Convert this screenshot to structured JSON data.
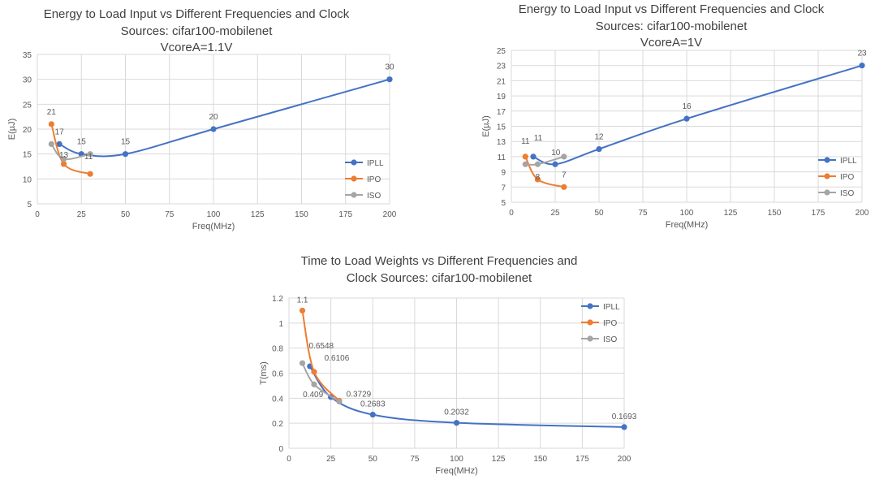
{
  "chart_data": [
    {
      "type": "line",
      "title": [
        "Energy to Load Input vs Different Frequencies and Clock",
        "Sources: cifar100-mobilenet",
        "VcoreA=1.1V"
      ],
      "xlabel": "Freq(MHz)",
      "ylabel": "E(µJ)",
      "xlim": [
        0,
        200
      ],
      "ylim": [
        5,
        35
      ],
      "xticks": [
        0,
        25,
        50,
        75,
        100,
        125,
        150,
        175,
        200
      ],
      "yticks": [
        5,
        10,
        15,
        20,
        25,
        30,
        35
      ],
      "grid": true,
      "legend": "right",
      "smooth": true,
      "series": [
        {
          "name": "IPLL",
          "color": "#4472C4",
          "x": [
            12.5,
            25,
            50,
            100,
            200
          ],
          "y": [
            17,
            15,
            15,
            20,
            30
          ]
        },
        {
          "name": "IPO",
          "color": "#ED7D31",
          "x": [
            8,
            15,
            30
          ],
          "y": [
            21,
            13,
            11
          ]
        },
        {
          "name": "ISO",
          "color": "#A5A5A5",
          "x": [
            8,
            15,
            30
          ],
          "y": [
            17,
            14,
            15
          ]
        }
      ],
      "data_labels": [
        {
          "series": 1,
          "index": 0,
          "text": "21"
        },
        {
          "series": 0,
          "index": 0,
          "text": "17"
        },
        {
          "series": 0,
          "index": 1,
          "text": "15"
        },
        {
          "series": 0,
          "index": 2,
          "text": "15"
        },
        {
          "series": 1,
          "index": 1,
          "text": "13"
        },
        {
          "series": 1,
          "index": 2,
          "text": "11"
        },
        {
          "series": 0,
          "index": 3,
          "text": "20"
        },
        {
          "series": 0,
          "index": 4,
          "text": "30"
        }
      ]
    },
    {
      "type": "line",
      "title": [
        "Energy to Load Input vs Different Frequencies and Clock",
        "Sources: cifar100-mobilenet",
        "VcoreA=1V"
      ],
      "xlabel": "Freq(MHz)",
      "ylabel": "E(µJ)",
      "xlim": [
        0,
        200
      ],
      "ylim": [
        5,
        25
      ],
      "xticks": [
        0,
        25,
        50,
        75,
        100,
        125,
        150,
        175,
        200
      ],
      "yticks": [
        5,
        7,
        9,
        11,
        13,
        15,
        17,
        19,
        21,
        23,
        25
      ],
      "grid": true,
      "legend": "right",
      "smooth": true,
      "series": [
        {
          "name": "IPLL",
          "color": "#4472C4",
          "x": [
            12.5,
            25,
            50,
            100,
            200
          ],
          "y": [
            11,
            10,
            12,
            16,
            23
          ]
        },
        {
          "name": "IPO",
          "color": "#ED7D31",
          "x": [
            8,
            15,
            30
          ],
          "y": [
            11,
            8,
            7
          ]
        },
        {
          "name": "ISO",
          "color": "#A5A5A5",
          "x": [
            8,
            15,
            30
          ],
          "y": [
            10,
            10,
            11
          ]
        }
      ],
      "data_labels": [
        {
          "series": 1,
          "index": 0,
          "text": "11"
        },
        {
          "series": 0,
          "index": 0,
          "text": "11"
        },
        {
          "series": 2,
          "index": 2,
          "text": "10"
        },
        {
          "series": 1,
          "index": 1,
          "text": "8"
        },
        {
          "series": 0,
          "index": 2,
          "text": "12"
        },
        {
          "series": 1,
          "index": 2,
          "text": "7"
        },
        {
          "series": 0,
          "index": 3,
          "text": "16"
        },
        {
          "series": 0,
          "index": 4,
          "text": "23"
        }
      ]
    },
    {
      "type": "line",
      "title": [
        "Time to Load Weights vs Different Frequencies and",
        "Clock Sources: cifar100-mobilenet"
      ],
      "xlabel": "Freq(MHz)",
      "ylabel": "T(ms)",
      "xlim": [
        0,
        200
      ],
      "ylim": [
        0,
        1.2
      ],
      "xticks": [
        0,
        25,
        50,
        75,
        100,
        125,
        150,
        175,
        200
      ],
      "yticks": [
        0,
        0.2,
        0.4,
        0.6,
        0.8,
        1,
        1.2
      ],
      "grid": true,
      "legend": "right",
      "smooth": true,
      "series": [
        {
          "name": "IPLL",
          "color": "#4472C4",
          "x": [
            12.5,
            25,
            50,
            100,
            200
          ],
          "y": [
            0.6548,
            0.409,
            0.2683,
            0.2032,
            0.1693
          ]
        },
        {
          "name": "IPO",
          "color": "#ED7D31",
          "x": [
            8,
            15,
            30
          ],
          "y": [
            1.1,
            0.6106,
            0.38
          ]
        },
        {
          "name": "ISO",
          "color": "#A5A5A5",
          "x": [
            8,
            15,
            30
          ],
          "y": [
            0.68,
            0.51,
            0.3729
          ]
        }
      ],
      "data_labels": [
        {
          "series": 1,
          "index": 0,
          "text": "1.1"
        },
        {
          "series": 0,
          "index": 0,
          "text": "0.6548"
        },
        {
          "series": 1,
          "index": 1,
          "text": "0.6106"
        },
        {
          "series": 0,
          "index": 1,
          "text": "0.409"
        },
        {
          "series": 2,
          "index": 2,
          "text": "0.3729"
        },
        {
          "series": 0,
          "index": 2,
          "text": "0.2683"
        },
        {
          "series": 0,
          "index": 3,
          "text": "0.2032"
        },
        {
          "series": 0,
          "index": 4,
          "text": "0.1693"
        }
      ]
    }
  ]
}
